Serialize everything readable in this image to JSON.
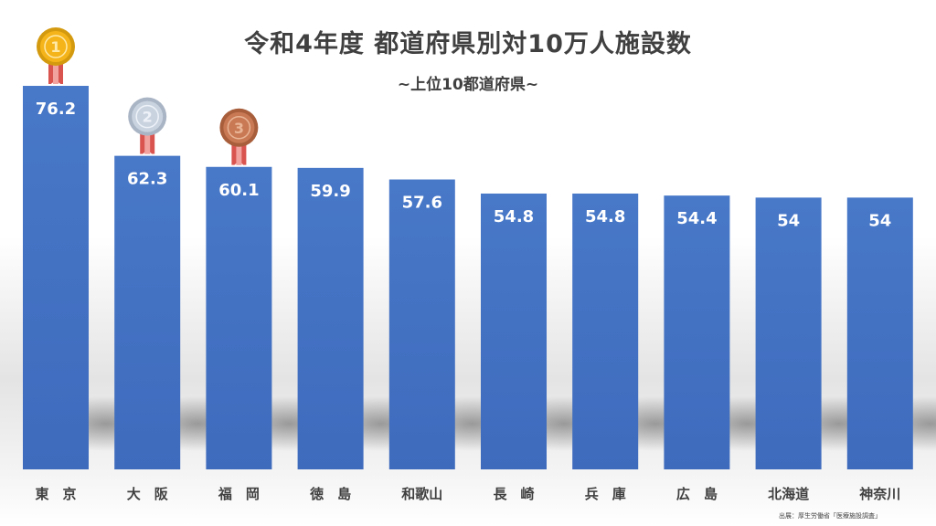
{
  "title": "令和4年度 都道府県別対10万人施設数",
  "subtitle": "~上位10都道府県~",
  "source": "出展：厚生労働省「医療施設調査」",
  "colors": {
    "bar": "#4472C4",
    "bar_dark": "#3a62b0",
    "gold": "#F4B41A",
    "silver": "#C9D3E0",
    "bronze": "#C97A55",
    "ribbon": "#D9534F",
    "label_text": "#ffffff",
    "axis_text": "#404040"
  },
  "medals": [
    "1",
    "2",
    "3"
  ],
  "chart_data": {
    "type": "bar",
    "categories": [
      "東　京",
      "大　阪",
      "福　岡",
      "徳　島",
      "和歌山",
      "長　崎",
      "兵　庫",
      "広　島",
      "北海道",
      "神奈川"
    ],
    "values": [
      76.2,
      62.3,
      60.1,
      59.9,
      57.6,
      54.8,
      54.8,
      54.4,
      54,
      54
    ],
    "data_labels": [
      "76.2",
      "62.3",
      "60.1",
      "59.9",
      "57.6",
      "54.8",
      "54.8",
      "54.4",
      "54",
      "54"
    ],
    "ylim": [
      0,
      86
    ],
    "grid": false,
    "legend": "none"
  }
}
